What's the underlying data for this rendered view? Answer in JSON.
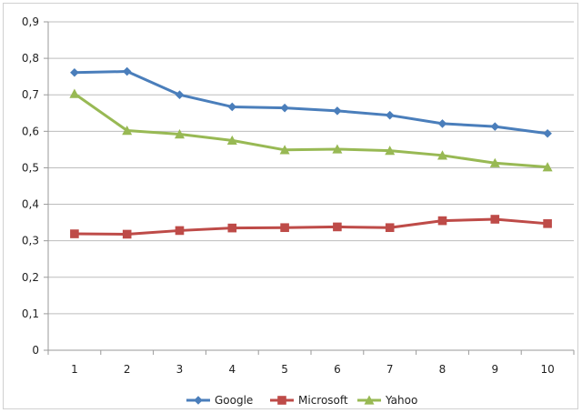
{
  "chart_data": {
    "type": "line",
    "title": "",
    "xlabel": "",
    "ylabel": "",
    "categories": [
      "1",
      "2",
      "3",
      "4",
      "5",
      "6",
      "7",
      "8",
      "9",
      "10"
    ],
    "ylim": [
      0,
      0.9
    ],
    "y_ticks": [
      "0",
      "0,1",
      "0,2",
      "0,3",
      "0,4",
      "0,5",
      "0,6",
      "0,7",
      "0,8",
      "0,9"
    ],
    "grid": "horizontal",
    "legend_position": "bottom",
    "series": [
      {
        "name": "Google",
        "color": "#4A7EBB",
        "marker": "diamond",
        "values": [
          0.761,
          0.764,
          0.7,
          0.667,
          0.664,
          0.656,
          0.644,
          0.621,
          0.613,
          0.594
        ]
      },
      {
        "name": "Microsoft",
        "color": "#BE4B48",
        "marker": "square",
        "values": [
          0.319,
          0.318,
          0.328,
          0.335,
          0.336,
          0.338,
          0.336,
          0.355,
          0.359,
          0.347
        ]
      },
      {
        "name": "Yahoo",
        "color": "#98B954",
        "marker": "triangle",
        "values": [
          0.703,
          0.602,
          0.592,
          0.575,
          0.549,
          0.551,
          0.547,
          0.534,
          0.513,
          0.502
        ]
      }
    ]
  }
}
